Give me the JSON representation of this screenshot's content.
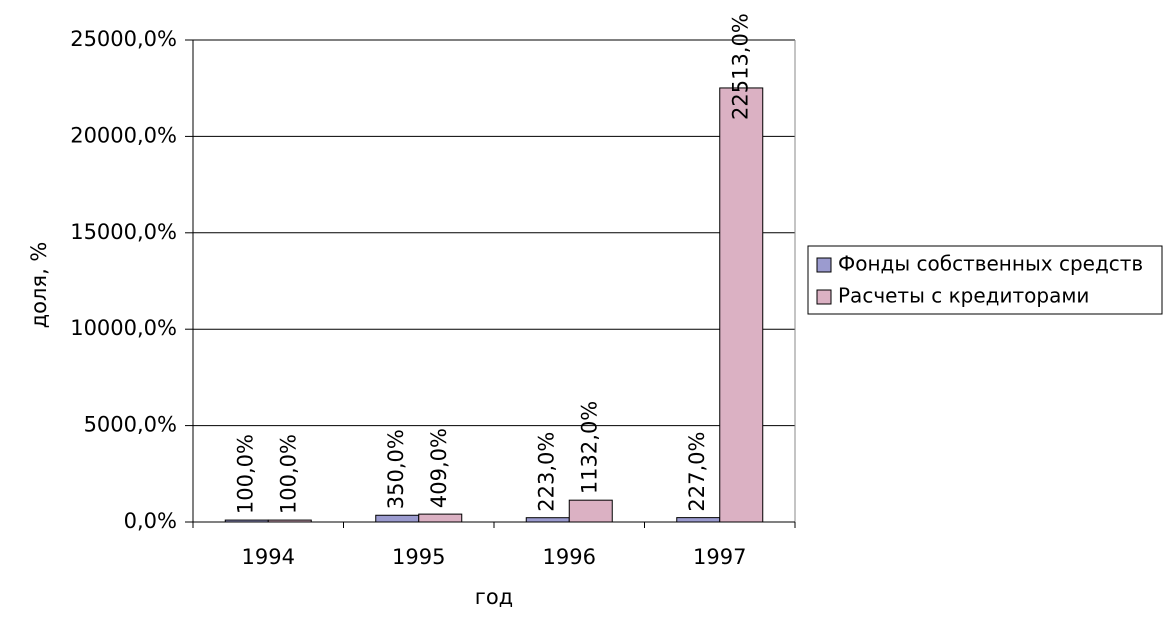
{
  "chart_data": {
    "type": "bar",
    "x_label": "год",
    "y_label": "доля, %",
    "categories": [
      "1994",
      "1995",
      "1996",
      "1997"
    ],
    "series": [
      {
        "name": "Фонды собственных средств",
        "color": "#9b9bcf",
        "values": [
          100,
          350,
          223,
          227
        ],
        "value_labels": [
          "100,0%",
          "350,0%",
          "223,0%",
          "227,0%"
        ]
      },
      {
        "name": "Расчеты с кредиторами",
        "color": "#dbb1c3",
        "values": [
          100,
          409,
          1132,
          22513
        ],
        "value_labels": [
          "100,0%",
          "409,0%",
          "1132,0%",
          "22513,0%"
        ]
      }
    ],
    "ylim": [
      0,
      25000
    ],
    "yticks": [
      {
        "value": 0,
        "label": "0,0%"
      },
      {
        "value": 5000,
        "label": "5000,0%"
      },
      {
        "value": 10000,
        "label": "10000,0%"
      },
      {
        "value": 15000,
        "label": "15000,0%"
      },
      {
        "value": 20000,
        "label": "20000,0%"
      },
      {
        "value": 25000,
        "label": "25000,0%"
      }
    ],
    "grid": true,
    "legend": "right"
  }
}
